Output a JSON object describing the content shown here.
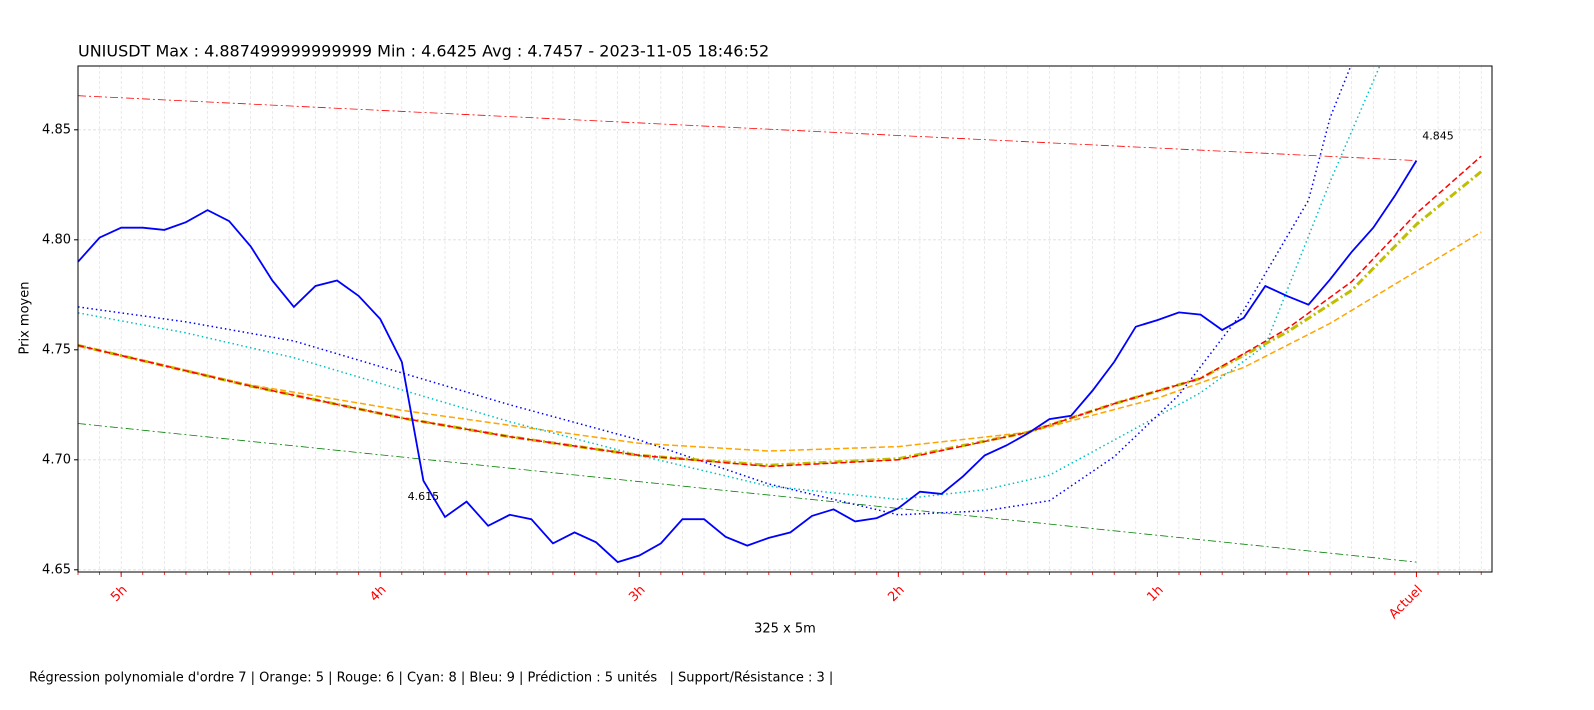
{
  "chart_data": {
    "type": "line",
    "title": "UNIUSDT Max : 4.887499999999999 Min : 4.6425 Avg : 4.7457 - 2023-11-05 18:46:52",
    "xlabel": "325 x 5m",
    "ylabel": "Prix moyen",
    "footer": "Régression polynomiale d'ordre 7 | Orange: 5 | Rouge: 6 | Cyan: 8 | Bleu: 9 | Prédiction : 5 unités   | Support/Résistance : 3 |",
    "xlim": [
      0,
      65.5
    ],
    "ylim": [
      4.649,
      4.879
    ],
    "xticks": [
      {
        "value": 2,
        "label": "5h"
      },
      {
        "value": 14,
        "label": "4h"
      },
      {
        "value": 26,
        "label": "3h"
      },
      {
        "value": 38,
        "label": "2h"
      },
      {
        "value": 50,
        "label": "1h"
      },
      {
        "value": 62,
        "label": "Actuel"
      }
    ],
    "yticks": [
      4.65,
      {
        "value": 4.7,
        "label": "4.70"
      },
      4.75,
      {
        "value": 4.8,
        "label": "4.80"
      },
      4.85
    ],
    "xtick_color": "#ff0000",
    "grid": true,
    "annotations": [
      {
        "text": "4.615",
        "x": 16,
        "y": 4.683
      },
      {
        "text": "4.845",
        "x": 63,
        "y": 4.847
      }
    ],
    "series": [
      {
        "color": "#ff0000",
        "style": "dashdot",
        "width": 0.8,
        "x": [
          0,
          62
        ],
        "values": [
          4.8655,
          4.836
        ]
      },
      {
        "color": "#008000",
        "style": "dashdot",
        "width": 0.8,
        "x": [
          0,
          62
        ],
        "values": [
          4.7165,
          4.6535
        ]
      },
      {
        "color": "#ffa500",
        "style": "dashed",
        "width": 1.5,
        "x": [
          0,
          8,
          15,
          26,
          32,
          38,
          44,
          50,
          54,
          58,
          65
        ],
        "values": [
          4.752,
          4.734,
          4.7225,
          4.7075,
          4.704,
          4.706,
          4.7125,
          4.728,
          4.742,
          4.762,
          4.8035
        ]
      },
      {
        "color": "#00c0c0",
        "style": "dotted",
        "width": 1.5,
        "x": [
          0,
          5,
          10,
          15,
          20,
          26,
          32,
          38,
          42,
          45,
          48,
          52,
          55,
          58,
          60.3
        ],
        "values": [
          4.7668,
          4.7577,
          4.7464,
          4.7318,
          4.7173,
          4.702,
          4.688,
          4.682,
          4.6864,
          4.693,
          4.709,
          4.7305,
          4.752,
          4.8264,
          4.879
        ]
      },
      {
        "color": "#0000ff",
        "style": "dotted",
        "width": 1.5,
        "x": [
          0,
          5,
          10,
          15,
          20,
          26,
          32,
          38,
          42,
          45,
          48,
          51,
          54,
          57,
          58,
          59
        ],
        "values": [
          4.7695,
          4.7627,
          4.754,
          4.7395,
          4.725,
          4.709,
          4.689,
          4.675,
          4.6768,
          4.6814,
          4.7014,
          4.7295,
          4.768,
          4.818,
          4.8555,
          4.88
        ]
      },
      {
        "color": "#bfbf00",
        "style": "dashdot",
        "width": 3,
        "x": [
          0,
          8,
          15,
          20,
          26,
          32,
          38,
          44,
          48,
          52,
          56,
          59,
          62,
          65
        ],
        "values": [
          4.752,
          4.7335,
          4.719,
          4.7105,
          4.702,
          4.6975,
          4.7005,
          4.7125,
          4.7255,
          4.737,
          4.758,
          4.777,
          4.807,
          4.831
        ]
      },
      {
        "color": "#ff0000",
        "style": "dashed",
        "width": 1.5,
        "x": [
          0,
          8,
          15,
          20,
          26,
          32,
          38,
          44,
          48,
          52,
          56,
          59,
          62,
          65
        ],
        "values": [
          4.752,
          4.7335,
          4.719,
          4.7105,
          4.702,
          4.697,
          4.7,
          4.7125,
          4.7255,
          4.737,
          4.7595,
          4.781,
          4.812,
          4.838
        ]
      },
      {
        "color": "#0000ff",
        "style": "solid",
        "width": 1.8,
        "x": [
          0,
          1,
          2,
          3,
          4,
          5,
          6,
          7,
          8,
          9,
          10,
          11,
          12,
          13,
          14,
          15,
          16,
          17,
          18,
          19,
          20,
          21,
          22,
          23,
          24,
          25,
          26,
          27,
          28,
          29,
          30,
          31,
          32,
          33,
          34,
          35,
          36,
          37,
          38,
          39,
          40,
          41,
          42,
          43,
          44,
          45,
          46,
          47,
          48,
          49,
          50,
          51,
          52,
          53,
          54,
          55,
          56,
          57,
          58,
          59,
          60,
          61,
          62
        ],
        "values": [
          4.79,
          4.801,
          4.8055,
          4.8055,
          4.8045,
          4.808,
          4.8135,
          4.8085,
          4.797,
          4.7815,
          4.7695,
          4.779,
          4.7815,
          4.7745,
          4.764,
          4.7445,
          4.6905,
          4.674,
          4.681,
          4.67,
          4.675,
          4.673,
          4.662,
          4.667,
          4.6625,
          4.6535,
          4.6565,
          4.662,
          4.673,
          4.673,
          4.665,
          4.661,
          4.6645,
          4.667,
          4.6745,
          4.6775,
          4.672,
          4.6735,
          4.678,
          4.6855,
          4.6845,
          4.6925,
          4.702,
          4.7065,
          4.712,
          4.7185,
          4.72,
          4.7315,
          4.7445,
          4.7605,
          4.7635,
          4.767,
          4.766,
          4.759,
          4.7645,
          4.779,
          4.7745,
          4.7705,
          4.782,
          4.7945,
          4.8055,
          4.82,
          4.836
        ]
      }
    ]
  }
}
